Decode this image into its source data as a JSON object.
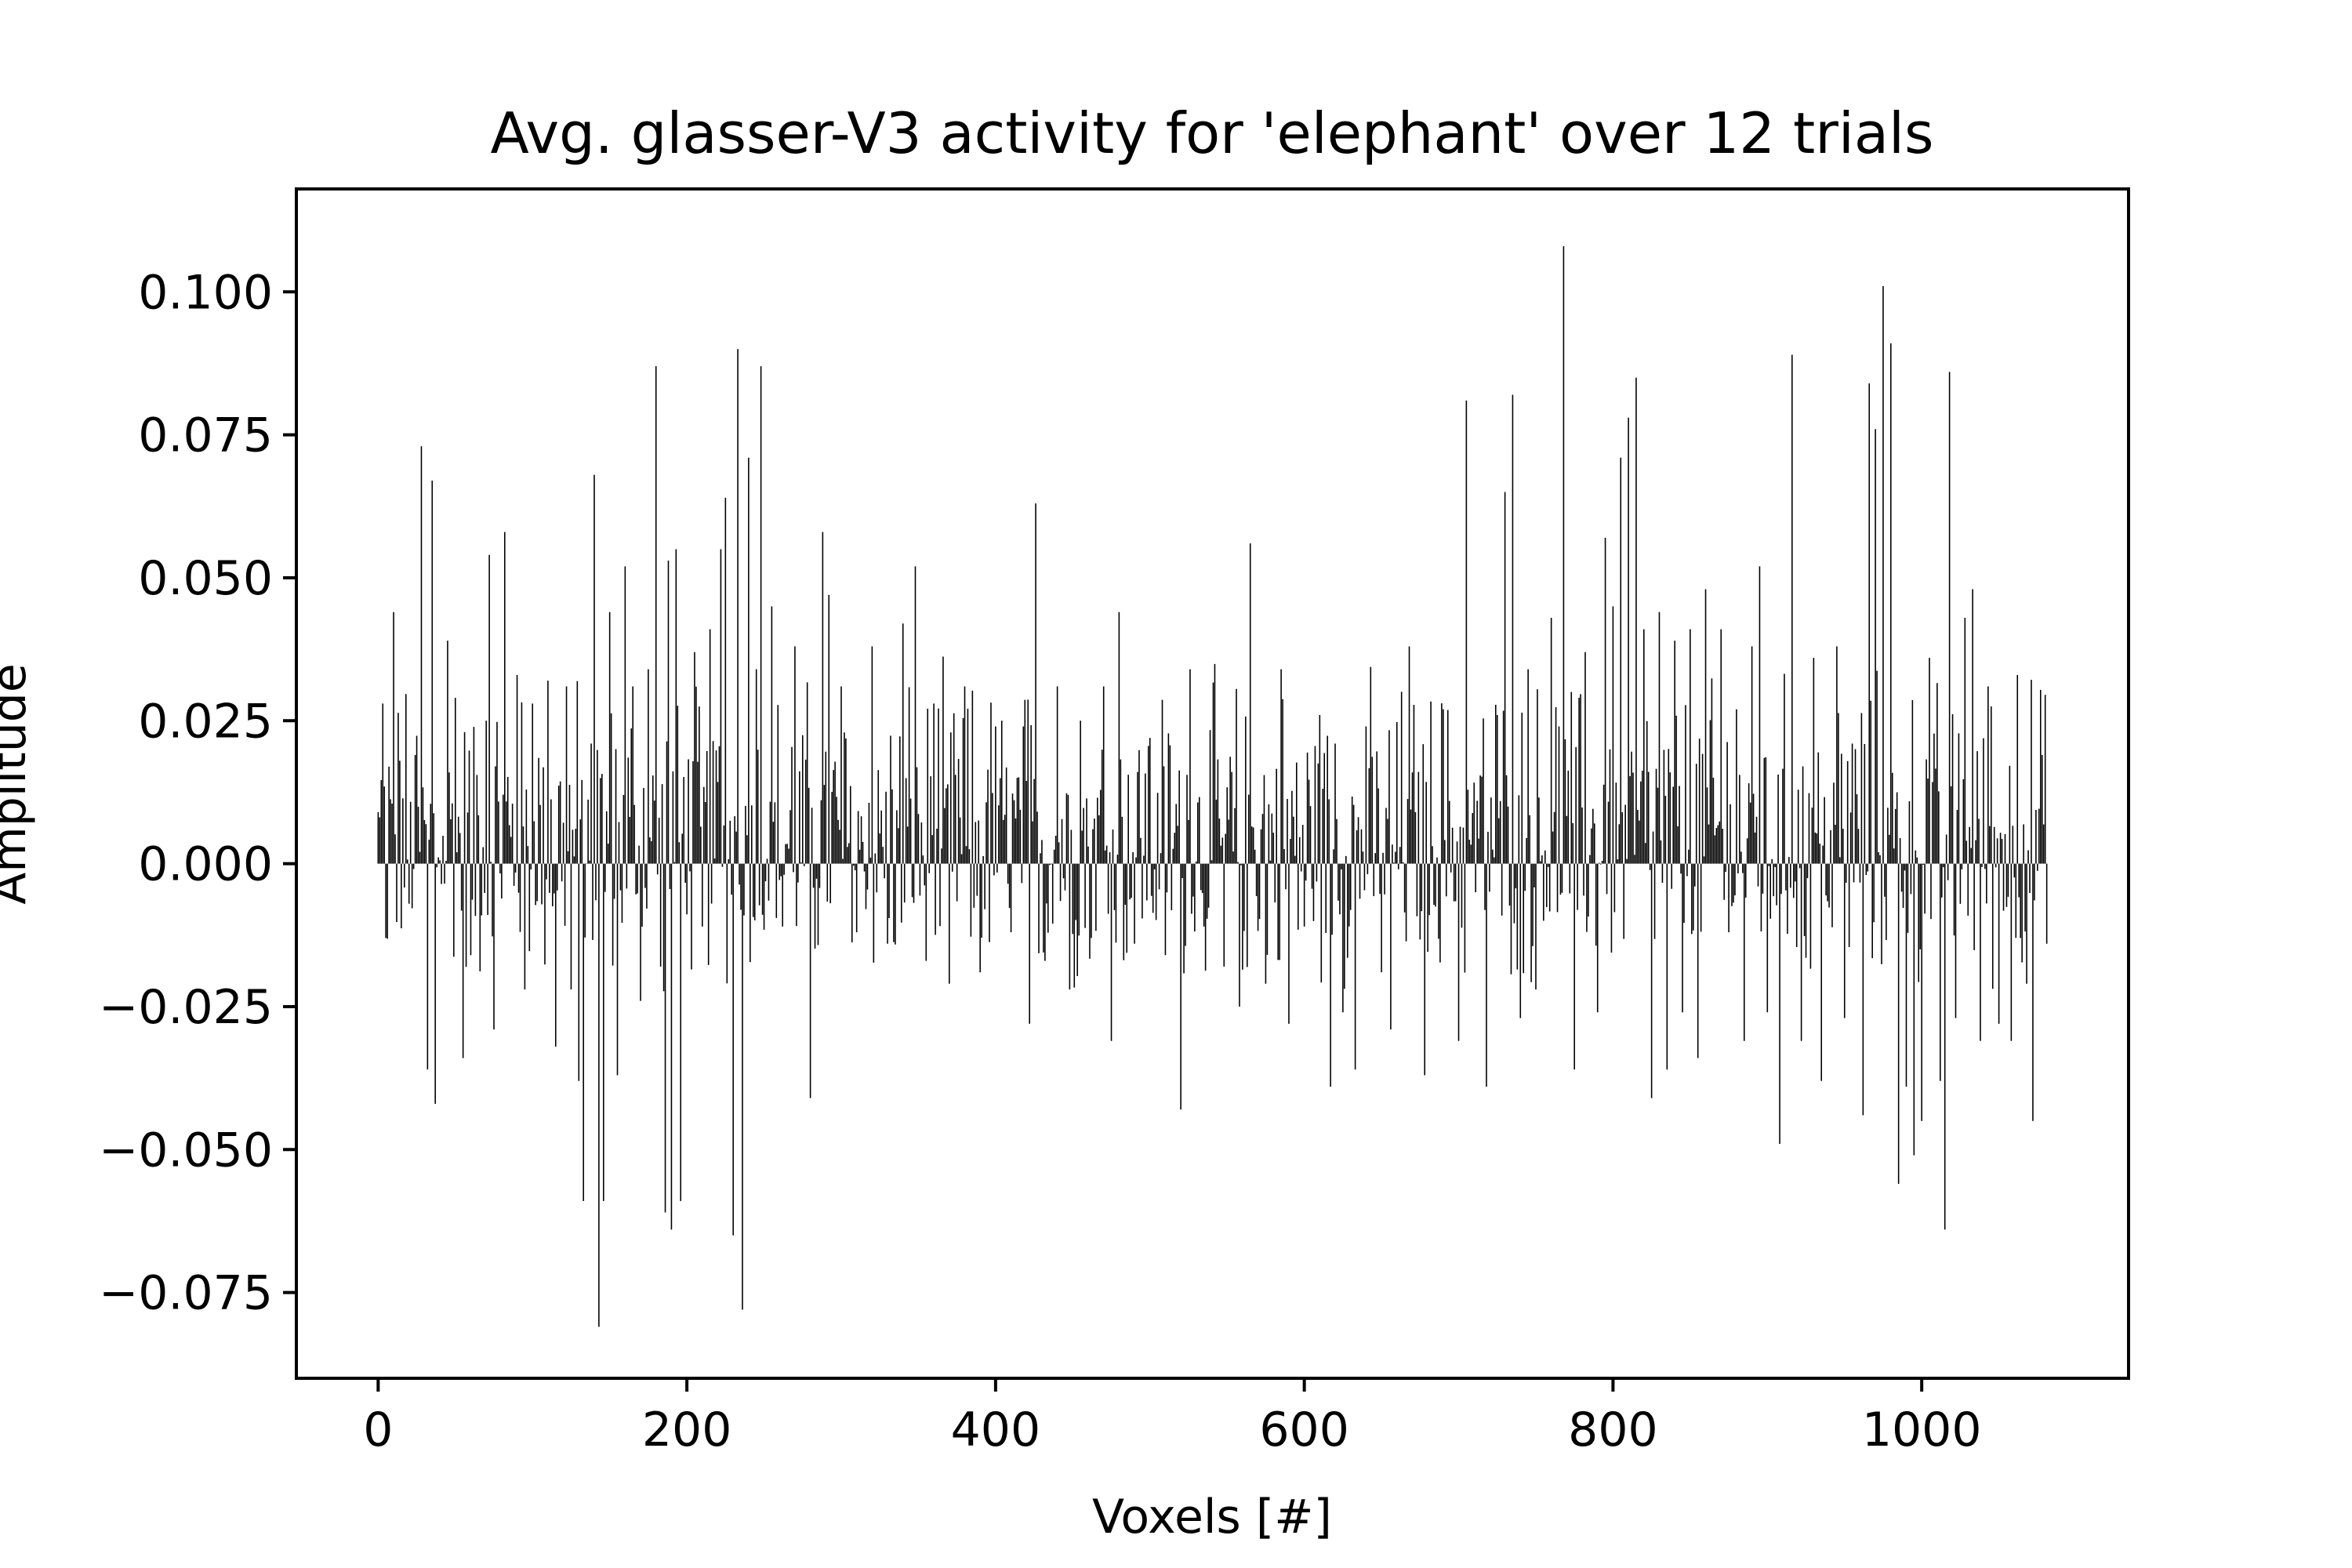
{
  "chart_data": {
    "type": "bar",
    "title": "Avg. glasser-V3 activity for 'elephant' over 12 trials",
    "xlabel": "Voxels [#]",
    "ylabel": "Amplitude",
    "xlim": [
      -53,
      1134
    ],
    "ylim": [
      -0.09,
      0.118
    ],
    "x_ticks": [
      0,
      200,
      400,
      600,
      800,
      1000
    ],
    "x_tick_labels": [
      "0",
      "200",
      "400",
      "600",
      "800",
      "1000"
    ],
    "y_ticks": [
      -0.075,
      -0.05,
      -0.025,
      0.0,
      0.025,
      0.05,
      0.075,
      0.1
    ],
    "y_tick_labels": [
      "−0.075",
      "−0.050",
      "−0.025",
      "0.000",
      "0.025",
      "0.050",
      "0.075",
      "0.100"
    ],
    "grid": false,
    "legend": "none",
    "bar_color": "#000000",
    "n_voxels": 1082,
    "values_sparse": [
      [
        0,
        0.009
      ],
      [
        3,
        0.028
      ],
      [
        5,
        -0.013
      ],
      [
        10,
        0.044
      ],
      [
        14,
        0.018
      ],
      [
        20,
        -0.007
      ],
      [
        24,
        0.019
      ],
      [
        28,
        0.073
      ],
      [
        32,
        -0.036
      ],
      [
        35,
        0.067
      ],
      [
        37,
        -0.042
      ],
      [
        45,
        0.039
      ],
      [
        50,
        0.029
      ],
      [
        55,
        -0.034
      ],
      [
        60,
        -0.016
      ],
      [
        70,
        0.025
      ],
      [
        72,
        0.054
      ],
      [
        75,
        -0.029
      ],
      [
        82,
        0.058
      ],
      [
        90,
        0.033
      ],
      [
        95,
        -0.022
      ],
      [
        100,
        0.028
      ],
      [
        110,
        0.032
      ],
      [
        115,
        -0.032
      ],
      [
        122,
        0.031
      ],
      [
        125,
        -0.022
      ],
      [
        130,
        -0.038
      ],
      [
        133,
        -0.059
      ],
      [
        138,
        0.021
      ],
      [
        140,
        0.068
      ],
      [
        143,
        -0.081
      ],
      [
        146,
        -0.059
      ],
      [
        150,
        0.044
      ],
      [
        155,
        -0.037
      ],
      [
        160,
        0.052
      ],
      [
        165,
        0.031
      ],
      [
        170,
        -0.024
      ],
      [
        175,
        0.034
      ],
      [
        180,
        0.087
      ],
      [
        183,
        -0.018
      ],
      [
        186,
        -0.061
      ],
      [
        188,
        0.053
      ],
      [
        190,
        -0.064
      ],
      [
        193,
        0.055
      ],
      [
        196,
        -0.059
      ],
      [
        205,
        0.037
      ],
      [
        210,
        -0.011
      ],
      [
        215,
        0.041
      ],
      [
        222,
        0.055
      ],
      [
        225,
        0.064
      ],
      [
        230,
        -0.065
      ],
      [
        233,
        0.09
      ],
      [
        236,
        -0.078
      ],
      [
        240,
        0.071
      ],
      [
        245,
        0.034
      ],
      [
        248,
        0.087
      ],
      [
        255,
        0.045
      ],
      [
        262,
        -0.011
      ],
      [
        270,
        0.038
      ],
      [
        280,
        -0.041
      ],
      [
        288,
        0.058
      ],
      [
        292,
        0.047
      ],
      [
        300,
        0.031
      ],
      [
        310,
        -0.012
      ],
      [
        320,
        0.038
      ],
      [
        330,
        -0.014
      ],
      [
        340,
        0.042
      ],
      [
        348,
        0.052
      ],
      [
        355,
        -0.017
      ],
      [
        360,
        0.028
      ],
      [
        370,
        -0.021
      ],
      [
        380,
        0.031
      ],
      [
        390,
        -0.019
      ],
      [
        400,
        0.024
      ],
      [
        410,
        -0.012
      ],
      [
        418,
        0.024
      ],
      [
        422,
        -0.028
      ],
      [
        426,
        0.063
      ],
      [
        432,
        -0.017
      ],
      [
        440,
        0.031
      ],
      [
        448,
        -0.022
      ],
      [
        455,
        0.025
      ],
      [
        462,
        -0.013
      ],
      [
        470,
        0.031
      ],
      [
        475,
        -0.031
      ],
      [
        480,
        0.044
      ],
      [
        490,
        -0.014
      ],
      [
        500,
        0.022
      ],
      [
        510,
        -0.016
      ],
      [
        520,
        -0.043
      ],
      [
        526,
        0.034
      ],
      [
        535,
        -0.011
      ],
      [
        548,
        -0.018
      ],
      [
        558,
        -0.025
      ],
      [
        565,
        0.056
      ],
      [
        575,
        -0.021
      ],
      [
        585,
        0.034
      ],
      [
        590,
        -0.028
      ],
      [
        600,
        -0.011
      ],
      [
        610,
        0.026
      ],
      [
        617,
        -0.039
      ],
      [
        620,
        0.021
      ],
      [
        625,
        -0.026
      ],
      [
        633,
        -0.036
      ],
      [
        640,
        0.024
      ],
      [
        650,
        -0.019
      ],
      [
        656,
        -0.029
      ],
      [
        668,
        0.038
      ],
      [
        678,
        -0.037
      ],
      [
        690,
        0.027
      ],
      [
        700,
        -0.031
      ],
      [
        705,
        0.081
      ],
      [
        712,
        0.011
      ],
      [
        718,
        -0.039
      ],
      [
        725,
        0.026
      ],
      [
        730,
        0.065
      ],
      [
        735,
        0.082
      ],
      [
        740,
        -0.027
      ],
      [
        745,
        0.034
      ],
      [
        750,
        -0.022
      ],
      [
        760,
        0.043
      ],
      [
        765,
        0.024
      ],
      [
        768,
        0.108
      ],
      [
        775,
        -0.036
      ],
      [
        782,
        0.037
      ],
      [
        790,
        -0.026
      ],
      [
        795,
        0.057
      ],
      [
        800,
        0.045
      ],
      [
        805,
        0.071
      ],
      [
        810,
        0.078
      ],
      [
        815,
        0.085
      ],
      [
        820,
        0.041
      ],
      [
        825,
        -0.041
      ],
      [
        830,
        0.044
      ],
      [
        835,
        -0.036
      ],
      [
        840,
        0.039
      ],
      [
        845,
        -0.026
      ],
      [
        850,
        0.041
      ],
      [
        855,
        -0.034
      ],
      [
        860,
        0.048
      ],
      [
        870,
        0.041
      ],
      [
        875,
        -0.012
      ],
      [
        880,
        0.027
      ],
      [
        885,
        -0.031
      ],
      [
        890,
        0.038
      ],
      [
        895,
        0.052
      ],
      [
        900,
        -0.026
      ],
      [
        908,
        -0.049
      ],
      [
        916,
        0.089
      ],
      [
        922,
        -0.031
      ],
      [
        930,
        0.036
      ],
      [
        935,
        -0.038
      ],
      [
        945,
        0.038
      ],
      [
        950,
        -0.027
      ],
      [
        955,
        0.021
      ],
      [
        962,
        -0.044
      ],
      [
        966,
        0.084
      ],
      [
        970,
        0.076
      ],
      [
        975,
        0.101
      ],
      [
        980,
        0.091
      ],
      [
        985,
        -0.056
      ],
      [
        990,
        -0.039
      ],
      [
        995,
        -0.051
      ],
      [
        1000,
        -0.045
      ],
      [
        1005,
        0.036
      ],
      [
        1012,
        -0.038
      ],
      [
        1015,
        -0.064
      ],
      [
        1018,
        0.086
      ],
      [
        1022,
        -0.027
      ],
      [
        1028,
        0.043
      ],
      [
        1033,
        0.048
      ],
      [
        1038,
        -0.031
      ],
      [
        1043,
        0.031
      ],
      [
        1050,
        -0.028
      ],
      [
        1058,
        -0.031
      ],
      [
        1062,
        0.033
      ],
      [
        1068,
        -0.021
      ],
      [
        1072,
        -0.045
      ],
      [
        1078,
        0.019
      ],
      [
        1081,
        -0.014
      ]
    ]
  }
}
